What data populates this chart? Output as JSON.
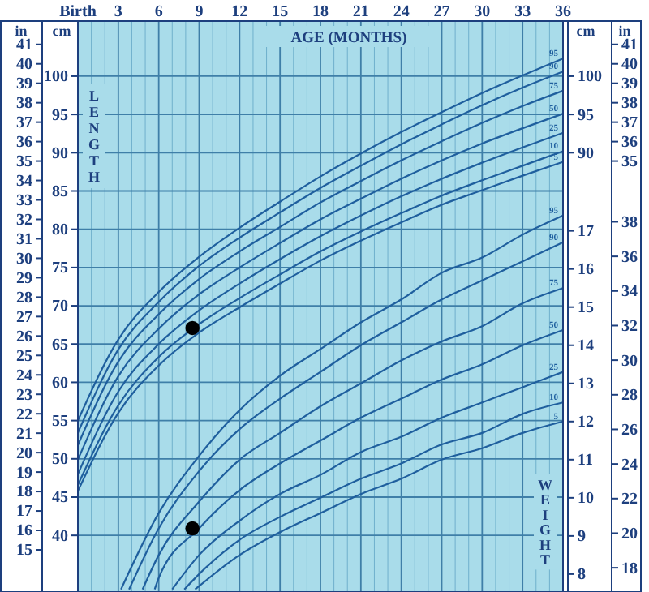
{
  "chart_data": [
    {
      "type": "line",
      "xlabel": "AGE (MONTHS)",
      "ylabel": "LENGTH",
      "annotations": [
        "in",
        "cm",
        "cm"
      ],
      "x": [
        0,
        3,
        6,
        9,
        12,
        15,
        18,
        21,
        24,
        27,
        30,
        33,
        36
      ],
      "xlim": [
        0,
        36
      ],
      "xticks": [
        {
          "value": 0,
          "label": "Birth"
        },
        {
          "value": 1,
          "label": null
        },
        {
          "value": 2,
          "label": null
        },
        3,
        {
          "value": 4,
          "label": null
        },
        {
          "value": 5,
          "label": null
        },
        6,
        {
          "value": 7,
          "label": null
        },
        {
          "value": 8,
          "label": null
        },
        9,
        {
          "value": 10,
          "label": null
        },
        {
          "value": 11,
          "label": null
        },
        12,
        {
          "value": 13,
          "label": null
        },
        {
          "value": 14,
          "label": null
        },
        15,
        {
          "value": 16,
          "label": null
        },
        {
          "value": 17,
          "label": null
        },
        18,
        {
          "value": 19,
          "label": null
        },
        {
          "value": 20,
          "label": null
        },
        21,
        {
          "value": 22,
          "label": null
        },
        {
          "value": 23,
          "label": null
        },
        24,
        {
          "value": 25,
          "label": null
        },
        {
          "value": 26,
          "label": null
        },
        27,
        {
          "value": 28,
          "label": null
        },
        {
          "value": 29,
          "label": null
        },
        30,
        {
          "value": 31,
          "label": null
        },
        {
          "value": 32,
          "label": null
        },
        33,
        {
          "value": 34,
          "label": null
        },
        {
          "value": 35,
          "label": null
        },
        36
      ],
      "ylim": [
        32.6,
        107.2
      ],
      "yticks": [
        40,
        45,
        50,
        55,
        60,
        65,
        70,
        75,
        80,
        85,
        90,
        95,
        100
      ],
      "y2lim": [
        32.6,
        107.2
      ],
      "y2ticks": [
        90,
        95,
        100
      ],
      "y3lim": [
        12.83,
        42.2
      ],
      "y3ticks": [
        15,
        16,
        17,
        18,
        19,
        20,
        21,
        22,
        23,
        24,
        25,
        26,
        27,
        28,
        29,
        30,
        31,
        32,
        33,
        34,
        35,
        36,
        37,
        38,
        39,
        40,
        41
      ],
      "grid": true,
      "marker": "none",
      "line_style": "solid",
      "series": [
        {
          "name": "95",
          "color": "#1f5f9e",
          "values": [
            55.0,
            65.6,
            71.8,
            76.4,
            80.2,
            83.6,
            86.9,
            89.9,
            92.7,
            95.3,
            97.8,
            100.1,
            102.3
          ]
        },
        {
          "name": "90",
          "color": "#1f5f9e",
          "values": [
            53.4,
            64.3,
            70.5,
            75.2,
            78.9,
            82.2,
            85.4,
            88.3,
            91.1,
            93.7,
            96.2,
            98.5,
            100.6
          ]
        },
        {
          "name": "75",
          "color": "#1f5f9e",
          "values": [
            51.8,
            62.7,
            68.9,
            73.5,
            77.1,
            80.3,
            83.5,
            86.3,
            89.0,
            91.5,
            93.9,
            96.1,
            98.1
          ]
        },
        {
          "name": "50",
          "color": "#1f5f9e",
          "values": [
            49.9,
            60.8,
            67.0,
            71.5,
            75.0,
            78.2,
            81.3,
            84.0,
            86.6,
            89.0,
            91.2,
            93.2,
            95.1
          ]
        },
        {
          "name": "25",
          "color": "#1f5f9e",
          "values": [
            48.0,
            58.8,
            65.0,
            69.4,
            72.9,
            76.1,
            79.1,
            81.8,
            84.3,
            86.6,
            88.7,
            90.7,
            92.6
          ]
        },
        {
          "name": "10",
          "color": "#1f5f9e",
          "values": [
            46.6,
            57.0,
            63.3,
            67.6,
            71.0,
            74.1,
            77.1,
            79.7,
            82.1,
            84.4,
            86.4,
            88.3,
            90.2
          ]
        },
        {
          "name": "5",
          "color": "#1f5f9e",
          "values": [
            45.8,
            56.0,
            62.2,
            66.5,
            69.8,
            72.9,
            75.9,
            78.5,
            80.9,
            83.2,
            85.1,
            87.0,
            88.8
          ]
        },
        {
          "type": "scatter",
          "marker": "circle",
          "color": "#000000",
          "x": [
            8.5
          ],
          "values": [
            67.1
          ]
        }
      ]
    },
    {
      "type": "line",
      "ylabel": "WEIGHT",
      "tick_labels": "y",
      "marker": "none",
      "line_style": "solid",
      "xlim": [
        0,
        36
      ],
      "ylim": [
        7.53,
        22.5
      ],
      "yticks": [
        8,
        9,
        10,
        11,
        12,
        13,
        14,
        15,
        16,
        17
      ],
      "y2lim": [
        16.6,
        49.6
      ],
      "y2ticks": [
        18,
        20,
        22,
        24,
        26,
        28,
        30,
        32,
        34,
        36,
        38
      ],
      "series": [
        {
          "name": "95",
          "color": "#1f5f9e",
          "x": [
            3.2,
            6,
            9,
            12,
            15,
            18,
            21,
            24,
            27,
            30,
            33,
            36
          ],
          "values": [
            7.6,
            9.6,
            11.1,
            12.3,
            13.2,
            13.9,
            14.6,
            15.2,
            15.9,
            16.3,
            16.9,
            17.4
          ]
        },
        {
          "name": "90",
          "color": "#1f5f9e",
          "x": [
            3.8,
            6,
            9,
            12,
            15,
            18,
            21,
            24,
            27,
            30,
            33,
            36
          ],
          "values": [
            7.6,
            9.2,
            10.7,
            11.8,
            12.6,
            13.3,
            14.0,
            14.6,
            15.2,
            15.7,
            16.2,
            16.7
          ]
        },
        {
          "name": "75",
          "color": "#1f5f9e",
          "x": [
            4.8,
            6,
            9,
            12,
            15,
            18,
            21,
            24,
            27,
            30,
            33,
            36
          ],
          "values": [
            7.6,
            8.5,
            9.9,
            11.0,
            11.7,
            12.4,
            13.0,
            13.6,
            14.1,
            14.5,
            15.1,
            15.5
          ]
        },
        {
          "name": "50",
          "color": "#1f5f9e",
          "x": [
            5.7,
            6,
            9,
            12,
            15,
            18,
            21,
            24,
            27,
            30,
            33,
            36
          ],
          "values": [
            7.6,
            7.9,
            9.2,
            10.2,
            10.9,
            11.5,
            12.1,
            12.6,
            13.1,
            13.5,
            14.0,
            14.4
          ]
        },
        {
          "name": "25",
          "color": "#1f5f9e",
          "x": [
            7.0,
            9,
            12,
            15,
            18,
            21,
            24,
            27,
            30,
            33,
            36
          ],
          "values": [
            7.6,
            8.5,
            9.4,
            10.1,
            10.6,
            11.2,
            11.6,
            12.1,
            12.5,
            12.9,
            13.3
          ]
        },
        {
          "name": "10",
          "color": "#1f5f9e",
          "x": [
            7.9,
            9,
            12,
            15,
            18,
            21,
            24,
            27,
            30,
            33,
            36
          ],
          "values": [
            7.6,
            8.0,
            8.9,
            9.5,
            10.0,
            10.5,
            10.9,
            11.4,
            11.7,
            12.2,
            12.5
          ]
        },
        {
          "name": "5",
          "color": "#1f5f9e",
          "x": [
            8.7,
            12,
            15,
            18,
            21,
            24,
            27,
            30,
            33,
            36
          ],
          "values": [
            7.6,
            8.5,
            9.1,
            9.6,
            10.1,
            10.5,
            11.0,
            11.3,
            11.7,
            12.0
          ]
        },
        {
          "type": "scatter",
          "marker": "circle",
          "color": "#000000",
          "x": [
            8.5
          ],
          "values": [
            9.2
          ]
        }
      ]
    },
    {
      "type": "line",
      "tick_labels": "y",
      "annotations": [
        "in"
      ],
      "xlim": [
        0,
        36
      ],
      "ylim": [
        12.83,
        42.2
      ],
      "yticks": [
        35,
        36,
        37,
        38,
        39,
        40,
        41
      ]
    }
  ]
}
